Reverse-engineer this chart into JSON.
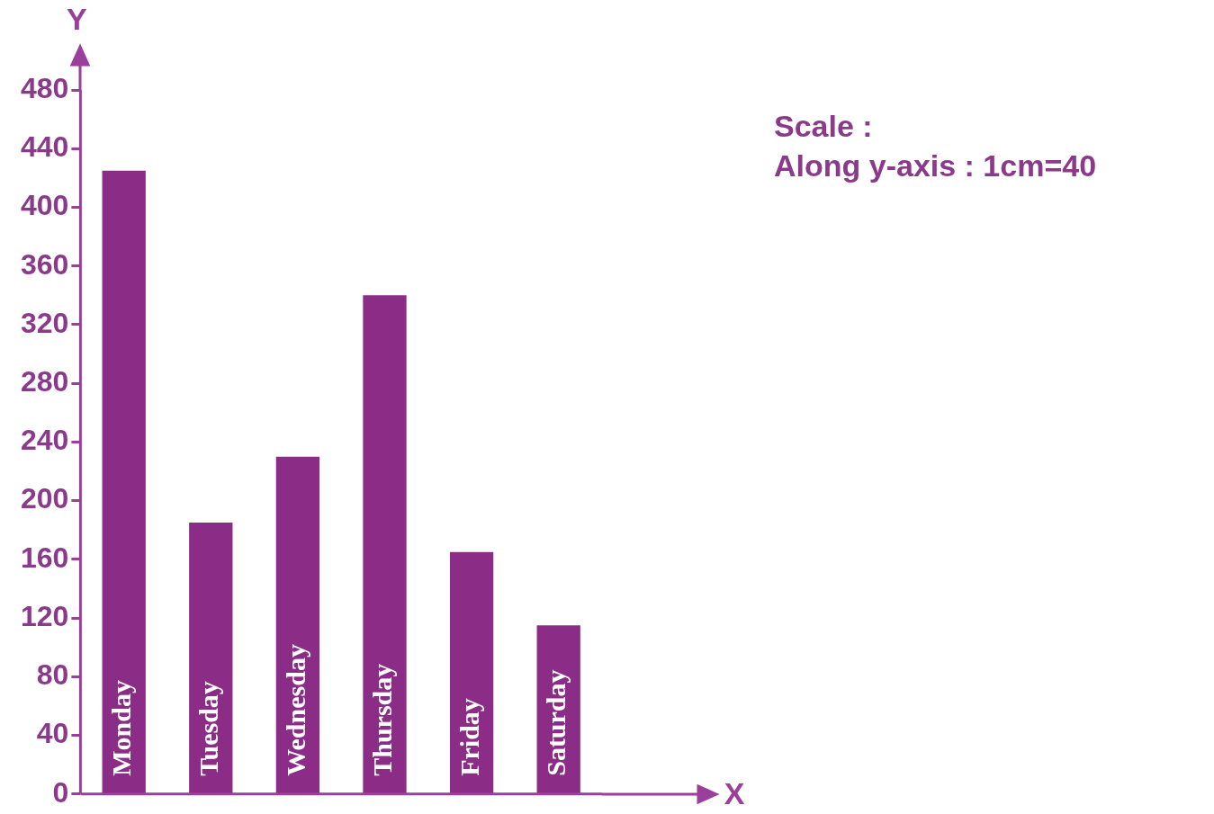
{
  "chart_data": {
    "type": "bar",
    "xlabel": "X",
    "ylabel": "Y",
    "categories": [
      "Monday",
      "Tuesday",
      "Wednesday",
      "Thursday",
      "Friday",
      "Saturday"
    ],
    "values": [
      425,
      185,
      230,
      340,
      165,
      115
    ],
    "color": "#8b2c86",
    "ylim": [
      0,
      480
    ],
    "yticks": [
      0,
      40,
      80,
      120,
      160,
      200,
      240,
      280,
      320,
      360,
      400,
      440,
      480
    ],
    "tick_labels": "y",
    "grid": false,
    "legend": false,
    "annotations": [
      "Scale :",
      "Along y-axis : 1cm=40"
    ]
  }
}
